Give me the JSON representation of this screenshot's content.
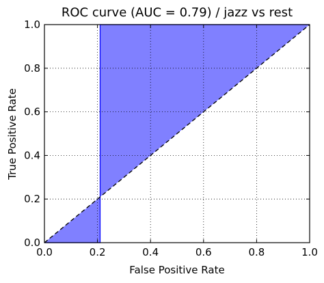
{
  "chart_data": {
    "type": "area",
    "title": "ROC curve (AUC = 0.79) / jazz vs rest",
    "xlabel": "False Positive Rate",
    "ylabel": "True Positive Rate",
    "xlim": [
      0.0,
      1.0
    ],
    "ylim": [
      0.0,
      1.0
    ],
    "x_ticks": [
      "0.0",
      "0.2",
      "0.4",
      "0.6",
      "0.8",
      "1.0"
    ],
    "y_ticks": [
      "0.0",
      "0.2",
      "0.4",
      "0.6",
      "0.8",
      "1.0"
    ],
    "grid": true,
    "series": [
      {
        "x": [
          0.0,
          0.21,
          0.21,
          1.0
        ],
        "y": [
          0.0,
          0.0,
          1.0,
          1.0
        ],
        "fill": true,
        "fill_color": "#8080ff",
        "line_color": "#0000ff"
      }
    ],
    "reference_line": {
      "x": [
        0.0,
        1.0
      ],
      "y": [
        0.0,
        1.0
      ],
      "style": "dashed",
      "color": "#000000"
    }
  }
}
